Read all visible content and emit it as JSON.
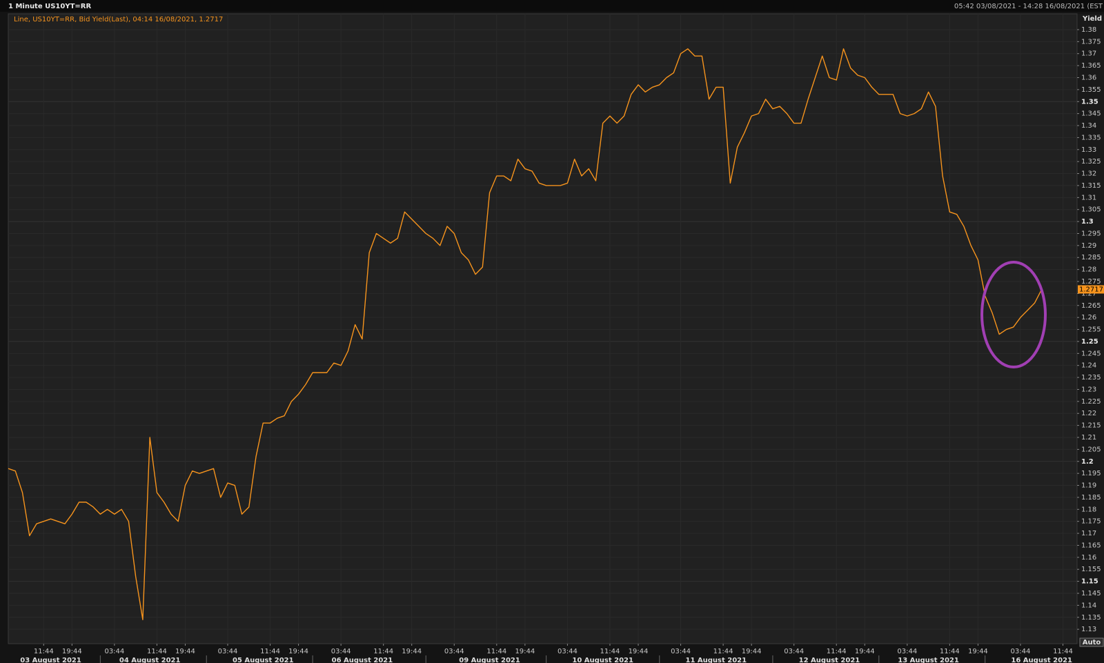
{
  "chart_data": {
    "type": "line",
    "title": "1 Minute US10YT=RR",
    "range_label": "05:42 03/08/2021 - 14:28 16/08/2021 (EST",
    "legend_text": "Line, US10YT=RR, Bid Yield(Last), 04:14 16/08/2021, 1.2717",
    "y_label": "Yield",
    "auto_button": "Auto",
    "color": "#f7941d",
    "grid": true,
    "ylim": [
      1.124,
      1.382
    ],
    "yticks": [
      1.13,
      1.135,
      1.14,
      1.145,
      1.15,
      1.155,
      1.16,
      1.165,
      1.17,
      1.175,
      1.18,
      1.185,
      1.19,
      1.195,
      1.2,
      1.205,
      1.21,
      1.215,
      1.22,
      1.225,
      1.23,
      1.235,
      1.24,
      1.245,
      1.25,
      1.255,
      1.26,
      1.265,
      1.27,
      1.275,
      1.28,
      1.285,
      1.29,
      1.295,
      1.3,
      1.305,
      1.31,
      1.315,
      1.32,
      1.325,
      1.33,
      1.335,
      1.34,
      1.345,
      1.35,
      1.355,
      1.36,
      1.365,
      1.37,
      1.375,
      1.38
    ],
    "categories": [
      null,
      null,
      null,
      null,
      null,
      "11:44",
      null,
      null,
      null,
      "19:44",
      null,
      null,
      null,
      null,
      null,
      "03:44",
      null,
      null,
      null,
      null,
      null,
      "11:44",
      null,
      null,
      null,
      "19:44",
      null,
      null,
      null,
      null,
      null,
      "03:44",
      null,
      null,
      null,
      null,
      null,
      "11:44",
      null,
      null,
      null,
      "19:44",
      null,
      null,
      null,
      null,
      null,
      "03:44",
      null,
      null,
      null,
      null,
      null,
      "11:44",
      null,
      null,
      null,
      "19:44",
      null,
      null,
      null,
      null,
      null,
      "03:44",
      null,
      null,
      null,
      null,
      null,
      "11:44",
      null,
      null,
      null,
      "19:44",
      null,
      null,
      null,
      null,
      null,
      "03:44",
      null,
      null,
      null,
      null,
      null,
      "11:44",
      null,
      null,
      null,
      "19:44",
      null,
      null,
      null,
      null,
      null,
      "03:44",
      null,
      null,
      null,
      null,
      null,
      "11:44",
      null,
      null,
      null,
      "19:44",
      null,
      null,
      null,
      null,
      null,
      "03:44",
      null,
      null,
      null,
      null,
      null,
      "11:44",
      null,
      null,
      null,
      "19:44",
      null,
      null,
      null,
      null,
      null,
      "03:44",
      null,
      null,
      null,
      null,
      null,
      "11:44",
      null,
      null,
      null,
      "19:44",
      null,
      null,
      null,
      null,
      null,
      "03:44",
      null,
      null,
      null,
      null,
      null,
      "11:44",
      null,
      null
    ],
    "dates": [
      null,
      null,
      null,
      null,
      null,
      null,
      "03 August 2021",
      null,
      null,
      null,
      null,
      null,
      null,
      null,
      null,
      null,
      null,
      null,
      null,
      null,
      "04 August 2021",
      null,
      null,
      null,
      null,
      null,
      null,
      null,
      null,
      null,
      null,
      null,
      null,
      null,
      null,
      null,
      "05 August 2021",
      null,
      null,
      null,
      null,
      null,
      null,
      null,
      null,
      null,
      null,
      null,
      null,
      null,
      "06 August 2021",
      null,
      null,
      null,
      null,
      null,
      null,
      null,
      null,
      null,
      null,
      null,
      null,
      null,
      null,
      null,
      null,
      null,
      "09 August 2021",
      null,
      null,
      null,
      null,
      null,
      null,
      null,
      null,
      null,
      null,
      null,
      null,
      null,
      null,
      null,
      "10 August 2021",
      null,
      null,
      null,
      null,
      null,
      null,
      null,
      null,
      null,
      null,
      null,
      null,
      null,
      null,
      null,
      "11 August 2021",
      null,
      null,
      null,
      null,
      null,
      null,
      null,
      null,
      null,
      null,
      null,
      null,
      null,
      null,
      null,
      "12 August 2021",
      null,
      null,
      null,
      null,
      null,
      null,
      null,
      null,
      null,
      null,
      null,
      null,
      null,
      "13 August 2021",
      null,
      null,
      null,
      null,
      null,
      null,
      null,
      null,
      null,
      null,
      null,
      null,
      null,
      null,
      null,
      "16 August 2021",
      null,
      null,
      null,
      null,
      null
    ],
    "values": [
      1.197,
      1.196,
      1.187,
      1.169,
      1.174,
      1.175,
      1.176,
      1.175,
      1.174,
      1.178,
      1.183,
      1.183,
      1.181,
      1.178,
      1.18,
      1.178,
      1.18,
      1.175,
      1.152,
      1.134,
      1.21,
      1.187,
      1.183,
      1.178,
      1.175,
      1.19,
      1.196,
      1.195,
      1.196,
      1.197,
      1.185,
      1.191,
      1.19,
      1.178,
      1.181,
      1.202,
      1.216,
      1.216,
      1.218,
      1.219,
      1.225,
      1.228,
      1.232,
      1.237,
      1.237,
      1.237,
      1.241,
      1.24,
      1.246,
      1.257,
      1.251,
      1.287,
      1.295,
      1.293,
      1.291,
      1.293,
      1.304,
      1.301,
      1.298,
      1.295,
      1.293,
      1.29,
      1.298,
      1.295,
      1.287,
      1.284,
      1.278,
      1.281,
      1.312,
      1.319,
      1.319,
      1.317,
      1.326,
      1.322,
      1.321,
      1.316,
      1.315,
      1.315,
      1.315,
      1.316,
      1.326,
      1.319,
      1.322,
      1.317,
      1.341,
      1.344,
      1.341,
      1.344,
      1.353,
      1.357,
      1.354,
      1.356,
      1.357,
      1.36,
      1.362,
      1.37,
      1.372,
      1.369,
      1.369,
      1.351,
      1.356,
      1.356,
      1.316,
      1.331,
      1.337,
      1.344,
      1.345,
      1.351,
      1.347,
      1.348,
      1.345,
      1.341,
      1.341,
      1.351,
      1.36,
      1.369,
      1.36,
      1.359,
      1.372,
      1.364,
      1.361,
      1.36,
      1.356,
      1.353,
      1.353,
      1.353,
      1.345,
      1.344,
      1.345,
      1.347,
      1.354,
      1.348,
      1.319,
      1.304,
      1.303,
      1.298,
      1.29,
      1.284,
      1.269,
      1.262,
      1.253,
      1.255,
      1.256,
      1.26,
      1.263,
      1.266,
      1.2717,
      null,
      null,
      null,
      null,
      null
    ]
  }
}
